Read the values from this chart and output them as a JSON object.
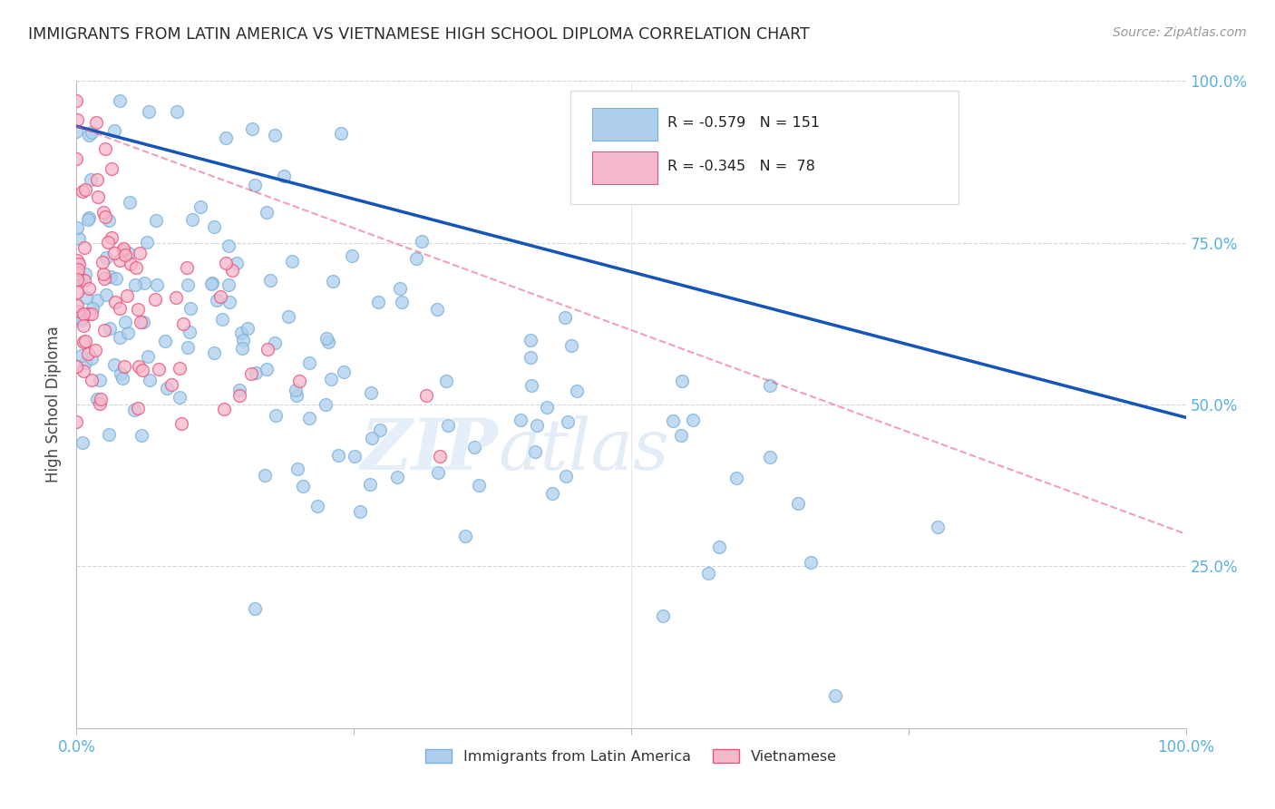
{
  "title": "IMMIGRANTS FROM LATIN AMERICA VS VIETNAMESE HIGH SCHOOL DIPLOMA CORRELATION CHART",
  "source": "Source: ZipAtlas.com",
  "ylabel": "High School Diploma",
  "legend_label1": "Immigrants from Latin America",
  "legend_label2": "Vietnamese",
  "R_blue": -0.579,
  "N_blue": 151,
  "R_pink": -0.345,
  "N_pink": 78,
  "blue_color": "#aecfee",
  "blue_edge_color": "#7ab0d8",
  "blue_line_color": "#1555b7",
  "pink_color": "#f7b8cb",
  "pink_edge_color": "#e8527a",
  "pink_line_color": "#e8527a",
  "bg_color": "#ffffff",
  "grid_color": "#cccccc",
  "title_color": "#2a2a2a",
  "tick_color": "#5ab0e0",
  "seed": 12345
}
